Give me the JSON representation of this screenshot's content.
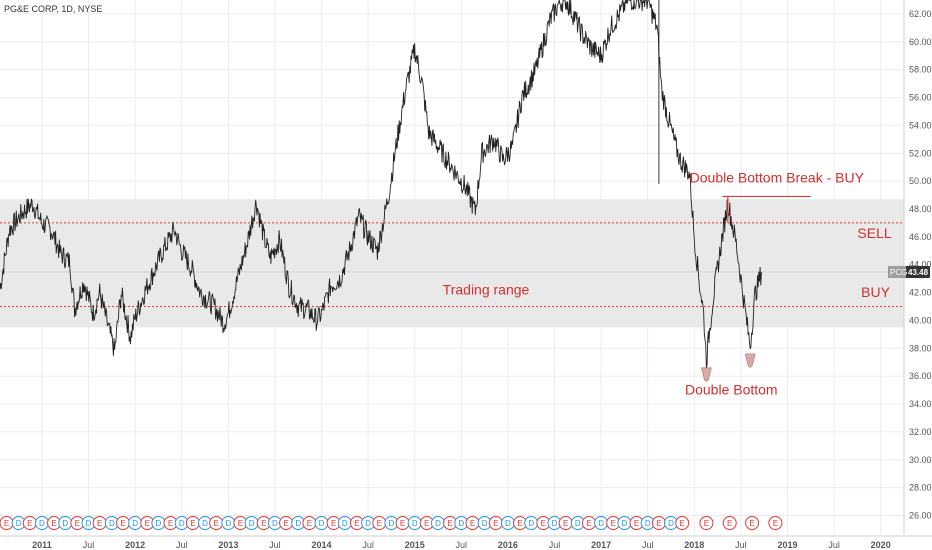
{
  "title": "PG&E CORP, 1D, NYSE",
  "symbol_badge": {
    "symbol": "PCG",
    "price": "43.48"
  },
  "annotations": {
    "double_bottom_break": "Double Bottom Break - BUY",
    "sell": "SELL",
    "buy": "BUY",
    "trading_range": "Trading range",
    "double_bottom": "Double Bottom"
  },
  "colors": {
    "band": "#e9e9e9",
    "dotted": "#e53935",
    "price": "#222222",
    "annotation": "#d32f2f",
    "marker_blue": "#2196f3",
    "marker_red": "#e53935",
    "bottom_marker_fill": "#d9a8a8"
  },
  "chart_data": {
    "type": "line",
    "title": "PG&E CORP, 1D, NYSE",
    "xlabel": "",
    "ylabel": "",
    "ylim": [
      24.6,
      63.0
    ],
    "xlim": [
      2010.55,
      2020.25
    ],
    "grid": true,
    "y_ticks": [
      "26.00",
      "28.00",
      "30.00",
      "32.00",
      "34.00",
      "36.00",
      "38.00",
      "40.00",
      "42.00",
      "44.00",
      "46.00",
      "48.00",
      "50.00",
      "52.00",
      "54.00",
      "56.00",
      "58.00",
      "60.00",
      "62.00"
    ],
    "x_ticks": [
      {
        "label": "2011",
        "x": 2011.0
      },
      {
        "label": "Jul",
        "x": 2011.5
      },
      {
        "label": "2012",
        "x": 2012.0
      },
      {
        "label": "Jul",
        "x": 2012.5
      },
      {
        "label": "2013",
        "x": 2013.0
      },
      {
        "label": "Jul",
        "x": 2013.5
      },
      {
        "label": "2014",
        "x": 2014.0
      },
      {
        "label": "Jul",
        "x": 2014.5
      },
      {
        "label": "2015",
        "x": 2015.0
      },
      {
        "label": "Jul",
        "x": 2015.5
      },
      {
        "label": "2016",
        "x": 2016.0
      },
      {
        "label": "Jul",
        "x": 2016.5
      },
      {
        "label": "2017",
        "x": 2017.0
      },
      {
        "label": "Jul",
        "x": 2017.5
      },
      {
        "label": "2018",
        "x": 2018.0
      },
      {
        "label": "Jul",
        "x": 2018.5
      },
      {
        "label": "2019",
        "x": 2019.0
      },
      {
        "label": "Jul",
        "x": 2019.5
      },
      {
        "label": "2020",
        "x": 2020.0
      }
    ],
    "series": [
      {
        "points": [
          [
            2010.55,
            42.3
          ],
          [
            2010.65,
            46.5
          ],
          [
            2010.8,
            47.8
          ],
          [
            2010.9,
            48.4
          ],
          [
            2011.0,
            47.0
          ],
          [
            2011.1,
            46.5
          ],
          [
            2011.2,
            44.8
          ],
          [
            2011.3,
            44.2
          ],
          [
            2011.35,
            40.8
          ],
          [
            2011.45,
            42.8
          ],
          [
            2011.55,
            40.5
          ],
          [
            2011.62,
            42.0
          ],
          [
            2011.7,
            39.8
          ],
          [
            2011.78,
            37.8
          ],
          [
            2011.85,
            42.0
          ],
          [
            2011.95,
            38.8
          ],
          [
            2012.0,
            40.2
          ],
          [
            2012.1,
            42.0
          ],
          [
            2012.2,
            43.5
          ],
          [
            2012.3,
            45.0
          ],
          [
            2012.42,
            46.5
          ],
          [
            2012.5,
            45.0
          ],
          [
            2012.6,
            43.8
          ],
          [
            2012.7,
            42.0
          ],
          [
            2012.85,
            41.0
          ],
          [
            2012.95,
            39.8
          ],
          [
            2013.0,
            40.5
          ],
          [
            2013.1,
            43.0
          ],
          [
            2013.2,
            45.5
          ],
          [
            2013.3,
            48.5
          ],
          [
            2013.38,
            46.0
          ],
          [
            2013.45,
            44.5
          ],
          [
            2013.55,
            45.8
          ],
          [
            2013.65,
            42.5
          ],
          [
            2013.75,
            41.0
          ],
          [
            2013.85,
            40.8
          ],
          [
            2013.95,
            40.0
          ],
          [
            2014.0,
            40.5
          ],
          [
            2014.1,
            42.5
          ],
          [
            2014.2,
            43.0
          ],
          [
            2014.3,
            45.0
          ],
          [
            2014.4,
            47.5
          ],
          [
            2014.5,
            46.0
          ],
          [
            2014.6,
            45.0
          ],
          [
            2014.72,
            49.0
          ],
          [
            2014.8,
            52.5
          ],
          [
            2014.9,
            56.5
          ],
          [
            2015.0,
            59.5
          ],
          [
            2015.08,
            57.0
          ],
          [
            2015.15,
            53.5
          ],
          [
            2015.3,
            52.0
          ],
          [
            2015.45,
            50.5
          ],
          [
            2015.55,
            49.5
          ],
          [
            2015.65,
            47.8
          ],
          [
            2015.72,
            52.0
          ],
          [
            2015.85,
            53.0
          ],
          [
            2015.95,
            51.5
          ],
          [
            2016.05,
            52.5
          ],
          [
            2016.15,
            56.0
          ],
          [
            2016.3,
            58.0
          ],
          [
            2016.45,
            61.5
          ],
          [
            2016.55,
            62.8
          ],
          [
            2016.62,
            63.0
          ],
          [
            2016.7,
            62.0
          ],
          [
            2016.8,
            60.5
          ],
          [
            2016.9,
            59.5
          ],
          [
            2017.0,
            59.0
          ],
          [
            2017.1,
            61.0
          ],
          [
            2017.2,
            62.0
          ],
          [
            2017.28,
            63.0
          ],
          [
            2017.38,
            63.0
          ],
          [
            2017.5,
            63.0
          ],
          [
            2017.6,
            61.0
          ],
          [
            2017.65,
            56.5
          ],
          [
            2017.72,
            54.5
          ],
          [
            2017.8,
            52.5
          ],
          [
            2017.85,
            51.5
          ],
          [
            2017.95,
            50.5
          ],
          [
            2018.0,
            46.0
          ],
          [
            2018.05,
            43.0
          ],
          [
            2018.1,
            40.5
          ],
          [
            2018.13,
            37.2
          ],
          [
            2018.2,
            41.5
          ],
          [
            2018.3,
            46.0
          ],
          [
            2018.36,
            48.5
          ],
          [
            2018.45,
            45.5
          ],
          [
            2018.52,
            42.0
          ],
          [
            2018.57,
            39.5
          ],
          [
            2018.6,
            38.2
          ],
          [
            2018.65,
            41.8
          ],
          [
            2018.72,
            43.48
          ]
        ]
      }
    ]
  },
  "earnings_markers": [
    {
      "x": 2010.62,
      "type": "E"
    },
    {
      "x": 2010.75,
      "type": "D"
    },
    {
      "x": 2010.87,
      "type": "E"
    },
    {
      "x": 2011.0,
      "type": "D"
    },
    {
      "x": 2011.13,
      "type": "E"
    },
    {
      "x": 2011.25,
      "type": "D"
    },
    {
      "x": 2011.38,
      "type": "E"
    },
    {
      "x": 2011.5,
      "type": "D"
    },
    {
      "x": 2011.62,
      "type": "E"
    },
    {
      "x": 2011.75,
      "type": "D"
    },
    {
      "x": 2011.87,
      "type": "E"
    },
    {
      "x": 2012.0,
      "type": "D"
    },
    {
      "x": 2012.13,
      "type": "E"
    },
    {
      "x": 2012.25,
      "type": "D"
    },
    {
      "x": 2012.38,
      "type": "E"
    },
    {
      "x": 2012.5,
      "type": "D"
    },
    {
      "x": 2012.62,
      "type": "E"
    },
    {
      "x": 2012.75,
      "type": "D"
    },
    {
      "x": 2012.87,
      "type": "E"
    },
    {
      "x": 2013.0,
      "type": "D"
    },
    {
      "x": 2013.13,
      "type": "E"
    },
    {
      "x": 2013.25,
      "type": "D"
    },
    {
      "x": 2013.38,
      "type": "E"
    },
    {
      "x": 2013.5,
      "type": "D"
    },
    {
      "x": 2013.62,
      "type": "E"
    },
    {
      "x": 2013.75,
      "type": "D"
    },
    {
      "x": 2013.87,
      "type": "E"
    },
    {
      "x": 2014.0,
      "type": "D"
    },
    {
      "x": 2014.13,
      "type": "E"
    },
    {
      "x": 2014.25,
      "type": "D"
    },
    {
      "x": 2014.38,
      "type": "E"
    },
    {
      "x": 2014.5,
      "type": "D"
    },
    {
      "x": 2014.62,
      "type": "E"
    },
    {
      "x": 2014.75,
      "type": "D"
    },
    {
      "x": 2014.87,
      "type": "E"
    },
    {
      "x": 2015.0,
      "type": "D"
    },
    {
      "x": 2015.13,
      "type": "E"
    },
    {
      "x": 2015.25,
      "type": "D"
    },
    {
      "x": 2015.38,
      "type": "E"
    },
    {
      "x": 2015.5,
      "type": "D"
    },
    {
      "x": 2015.62,
      "type": "E"
    },
    {
      "x": 2015.75,
      "type": "D"
    },
    {
      "x": 2015.87,
      "type": "E"
    },
    {
      "x": 2016.0,
      "type": "D"
    },
    {
      "x": 2016.13,
      "type": "E"
    },
    {
      "x": 2016.25,
      "type": "D"
    },
    {
      "x": 2016.38,
      "type": "E"
    },
    {
      "x": 2016.5,
      "type": "D"
    },
    {
      "x": 2016.62,
      "type": "E"
    },
    {
      "x": 2016.75,
      "type": "D"
    },
    {
      "x": 2016.87,
      "type": "E"
    },
    {
      "x": 2017.0,
      "type": "D"
    },
    {
      "x": 2017.13,
      "type": "E"
    },
    {
      "x": 2017.25,
      "type": "D"
    },
    {
      "x": 2017.38,
      "type": "E"
    },
    {
      "x": 2017.5,
      "type": "D"
    },
    {
      "x": 2017.62,
      "type": "E"
    },
    {
      "x": 2017.75,
      "type": "D"
    },
    {
      "x": 2017.87,
      "type": "E"
    },
    {
      "x": 2018.13,
      "type": "E"
    },
    {
      "x": 2018.38,
      "type": "E"
    },
    {
      "x": 2018.62,
      "type": "E"
    },
    {
      "x": 2018.87,
      "type": "E"
    }
  ]
}
